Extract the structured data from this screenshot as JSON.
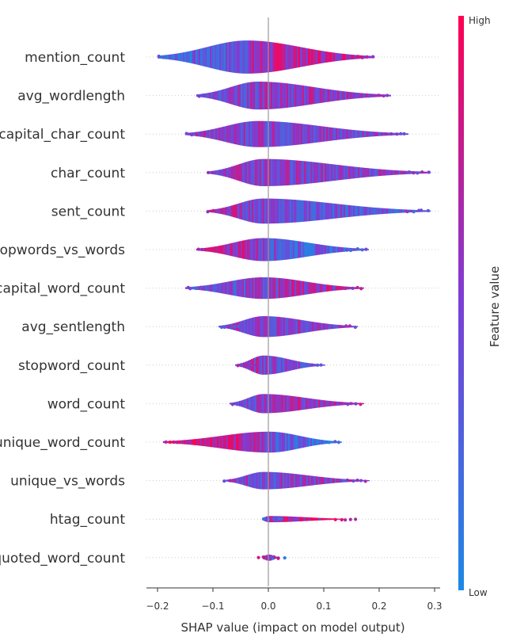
{
  "chart_data": {
    "type": "violin",
    "xlabel": "SHAP value (impact on model output)",
    "xlim": [
      -0.22,
      0.31
    ],
    "xticks": [
      -0.2,
      -0.1,
      0.0,
      0.1,
      0.2,
      0.3
    ],
    "xtick_labels": [
      "−0.2",
      "−0.1",
      "0.0",
      "0.1",
      "0.2",
      "0.3"
    ],
    "colorbar": {
      "title": "Feature value",
      "high_label": "High",
      "low_label": "Low",
      "low_color": "#1e88e5",
      "mid_color": "#7b3fd6",
      "high_color": "#ff0052"
    },
    "features": [
      {
        "name": "mention_count",
        "min": -0.2,
        "max": 0.19,
        "center": -0.04,
        "width": 0.95,
        "bias": -0.5
      },
      {
        "name": "avg_wordlength",
        "min": -0.13,
        "max": 0.22,
        "center": -0.02,
        "width": 0.8,
        "bias": -0.2
      },
      {
        "name": "capital_char_count",
        "min": -0.15,
        "max": 0.25,
        "center": -0.02,
        "width": 0.75,
        "bias": 0.0
      },
      {
        "name": "char_count",
        "min": -0.11,
        "max": 0.29,
        "center": -0.01,
        "width": 0.78,
        "bias": 0.0
      },
      {
        "name": "sent_count",
        "min": -0.11,
        "max": 0.29,
        "center": -0.01,
        "width": 0.72,
        "bias": 0.3
      },
      {
        "name": "stopwords_vs_words",
        "min": -0.13,
        "max": 0.18,
        "center": -0.01,
        "width": 0.66,
        "bias": 0.5
      },
      {
        "name": "capital_word_count",
        "min": -0.15,
        "max": 0.17,
        "center": -0.01,
        "width": 0.62,
        "bias": -0.3
      },
      {
        "name": "avg_sentlength",
        "min": -0.09,
        "max": 0.16,
        "center": -0.01,
        "width": 0.6,
        "bias": 0.0
      },
      {
        "name": "stopword_count",
        "min": -0.06,
        "max": 0.1,
        "center": -0.01,
        "width": 0.55,
        "bias": 0.2
      },
      {
        "name": "word_count",
        "min": -0.07,
        "max": 0.17,
        "center": -0.01,
        "width": 0.55,
        "bias": -0.3
      },
      {
        "name": "unique_word_count",
        "min": -0.19,
        "max": 0.13,
        "center": 0.0,
        "width": 0.6,
        "bias": 0.7
      },
      {
        "name": "unique_vs_words",
        "min": -0.08,
        "max": 0.18,
        "center": -0.01,
        "width": 0.5,
        "bias": 0.0
      },
      {
        "name": "htag_count",
        "min": -0.01,
        "max": 0.16,
        "center": 0.0,
        "width": 0.18,
        "bias": -0.7
      },
      {
        "name": "quoted_word_count",
        "min": -0.01,
        "max": 0.02,
        "center": 0.0,
        "width": 0.18,
        "bias": -0.7
      }
    ]
  }
}
